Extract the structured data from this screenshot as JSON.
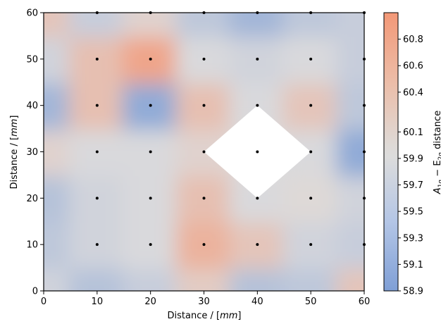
{
  "chart_data": {
    "type": "heatmap",
    "subtype": "filled-contour",
    "xlabel_prefix": "Distance / [",
    "xlabel_unit": "mm",
    "xlabel_suffix": "]",
    "ylabel_prefix": "Distance / [",
    "ylabel_unit": "mm",
    "ylabel_suffix": "]",
    "colorbar_label_main": "A",
    "colorbar_label_sub1": "1g",
    "colorbar_label_mid": " − E",
    "colorbar_label_sub2": "2g",
    "colorbar_label_suffix": " distance",
    "xlim": [
      0,
      60
    ],
    "ylim": [
      0,
      60
    ],
    "x_ticks": [
      0,
      10,
      20,
      30,
      40,
      50,
      60
    ],
    "y_ticks": [
      0,
      10,
      20,
      30,
      40,
      50,
      60
    ],
    "x_tick_labels": [
      "0",
      "10",
      "20",
      "30",
      "40",
      "50",
      "60"
    ],
    "y_tick_labels": [
      "0",
      "10",
      "20",
      "30",
      "40",
      "50",
      "60"
    ],
    "colorbar_range": [
      58.9,
      61.0
    ],
    "colorbar_ticks": [
      58.9,
      59.1,
      59.3,
      59.5,
      59.7,
      59.9,
      60.1,
      60.4,
      60.6,
      60.8
    ],
    "colorbar_tick_labels": [
      "58.9",
      "59.1",
      "59.3",
      "59.5",
      "59.7",
      "59.9",
      "60.1",
      "60.4",
      "60.6",
      "60.8"
    ],
    "colormap": {
      "low": "#7f9fd6",
      "mid": "#dddcdc",
      "high": "#f39877"
    },
    "grid_x": [
      0,
      10,
      20,
      30,
      40,
      50,
      60
    ],
    "grid_y": [
      0,
      10,
      20,
      30,
      40,
      50,
      60
    ],
    "values": [
      [
        59.8,
        59.5,
        59.7,
        60.2,
        59.5,
        59.6,
        60.3
      ],
      [
        59.6,
        59.8,
        59.9,
        60.6,
        60.3,
        59.8,
        59.7
      ],
      [
        59.5,
        59.8,
        59.9,
        60.4,
        59.9,
        60.0,
        59.8
      ],
      [
        60.1,
        59.9,
        59.9,
        60.1,
        null,
        59.9,
        59.1
      ],
      [
        59.3,
        60.4,
        59.1,
        60.4,
        59.9,
        60.3,
        59.6
      ],
      [
        59.8,
        60.4,
        60.8,
        59.9,
        59.8,
        59.9,
        59.7
      ],
      [
        60.3,
        59.7,
        60.1,
        59.6,
        59.3,
        59.6,
        59.7
      ]
    ],
    "masked_region": "diamond centered at (40, 30)",
    "sample_points": [
      [
        10,
        10
      ],
      [
        20,
        10
      ],
      [
        30,
        10
      ],
      [
        40,
        10
      ],
      [
        50,
        10
      ],
      [
        60,
        10
      ],
      [
        10,
        20
      ],
      [
        20,
        20
      ],
      [
        30,
        20
      ],
      [
        40,
        20
      ],
      [
        50,
        20
      ],
      [
        60,
        20
      ],
      [
        10,
        30
      ],
      [
        20,
        30
      ],
      [
        30,
        30
      ],
      [
        40,
        30
      ],
      [
        50,
        30
      ],
      [
        60,
        30
      ],
      [
        10,
        40
      ],
      [
        20,
        40
      ],
      [
        30,
        40
      ],
      [
        40,
        40
      ],
      [
        50,
        40
      ],
      [
        60,
        40
      ],
      [
        10,
        50
      ],
      [
        20,
        50
      ],
      [
        30,
        50
      ],
      [
        40,
        50
      ],
      [
        50,
        50
      ],
      [
        60,
        50
      ],
      [
        10,
        60
      ],
      [
        20,
        60
      ],
      [
        30,
        60
      ],
      [
        40,
        60
      ],
      [
        50,
        60
      ],
      [
        60,
        60
      ]
    ]
  }
}
